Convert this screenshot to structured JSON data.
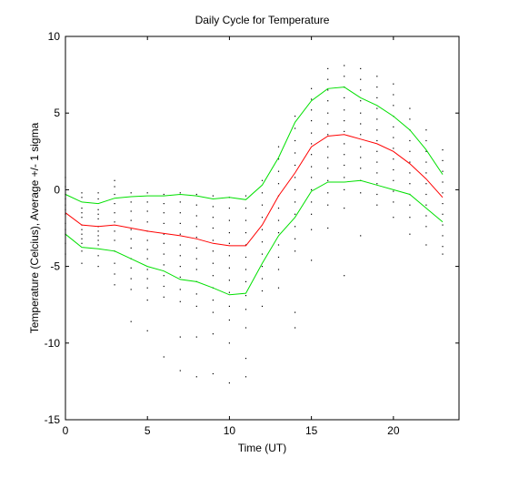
{
  "chart_data": {
    "type": "line",
    "title": "Daily Cycle for Temperature",
    "xlabel": "Time (UT)",
    "ylabel": "Temperature (Celcius), Average +/- 1 sigma",
    "xlim": [
      0,
      24
    ],
    "ylim": [
      -15,
      10
    ],
    "xticks": [
      0,
      5,
      10,
      15,
      20
    ],
    "yticks": [
      -15,
      -10,
      -5,
      0,
      5,
      10
    ],
    "grid": false,
    "x": [
      0,
      1,
      2,
      3,
      4,
      5,
      6,
      7,
      8,
      9,
      10,
      11,
      12,
      13,
      14,
      15,
      16,
      17,
      18,
      19,
      20,
      21,
      22,
      23
    ],
    "series": [
      {
        "role": "mean",
        "color": "#ff0000",
        "values": [
          -1.5,
          -2.3,
          -2.4,
          -2.3,
          -2.5,
          -2.7,
          -2.85,
          -3.0,
          -3.2,
          -3.5,
          -3.65,
          -3.65,
          -2.3,
          -0.4,
          1.1,
          2.8,
          3.5,
          3.6,
          3.3,
          3.0,
          2.5,
          1.7,
          0.7,
          -0.5
        ]
      },
      {
        "role": "mean+1sigma",
        "color": "#00e000",
        "values": [
          -0.3,
          -0.8,
          -0.9,
          -0.55,
          -0.45,
          -0.4,
          -0.4,
          -0.3,
          -0.4,
          -0.6,
          -0.5,
          -0.65,
          0.3,
          2.1,
          4.4,
          5.8,
          6.6,
          6.7,
          6.0,
          5.5,
          4.8,
          3.9,
          2.6,
          1.0
        ]
      },
      {
        "role": "mean-1sigma",
        "color": "#00e000",
        "values": [
          -2.9,
          -3.75,
          -3.85,
          -4.0,
          -4.5,
          -5.0,
          -5.3,
          -5.85,
          -6.0,
          -6.4,
          -6.85,
          -6.75,
          -4.8,
          -3.0,
          -1.8,
          -0.1,
          0.5,
          0.5,
          0.6,
          0.3,
          0.0,
          -0.3,
          -1.2,
          -2.1
        ]
      }
    ],
    "scatter": {
      "color": "#000000",
      "points": [
        [
          0,
          -0.3
        ],
        [
          0,
          -1.0
        ],
        [
          0,
          -1.6
        ],
        [
          0,
          -2.2
        ],
        [
          0,
          -2.9
        ],
        [
          0,
          -3.5
        ],
        [
          0,
          -4.2
        ],
        [
          0,
          0.2
        ],
        [
          0,
          0.8
        ],
        [
          0,
          -0.6
        ],
        [
          0,
          -1.3
        ],
        [
          0,
          -2.6
        ],
        [
          1,
          -0.5
        ],
        [
          1,
          -1.2
        ],
        [
          1,
          -1.8
        ],
        [
          1,
          -2.3
        ],
        [
          1,
          -2.9
        ],
        [
          1,
          -3.5
        ],
        [
          1,
          -4.0
        ],
        [
          1,
          -4.8
        ],
        [
          1,
          -0.2
        ],
        [
          1,
          -3.2
        ],
        [
          1,
          -2.6
        ],
        [
          1,
          -1.5
        ],
        [
          2,
          -0.6
        ],
        [
          2,
          -1.3
        ],
        [
          2,
          -1.9
        ],
        [
          2,
          -2.4
        ],
        [
          2,
          -3.0
        ],
        [
          2,
          -3.6
        ],
        [
          2,
          -4.3
        ],
        [
          2,
          -5.0
        ],
        [
          2,
          -0.2
        ],
        [
          2,
          -2.7
        ],
        [
          2,
          -1.6
        ],
        [
          2,
          -3.3
        ],
        [
          3,
          -0.3
        ],
        [
          3,
          -0.9
        ],
        [
          3,
          -1.5
        ],
        [
          3,
          -2.1
        ],
        [
          3,
          -2.7
        ],
        [
          3,
          -3.3
        ],
        [
          3,
          -4.0
        ],
        [
          3,
          -4.8
        ],
        [
          3,
          -5.5
        ],
        [
          3,
          -6.2
        ],
        [
          3,
          0.2
        ],
        [
          3,
          0.6
        ],
        [
          4,
          -0.2
        ],
        [
          4,
          -0.8
        ],
        [
          4,
          -1.4
        ],
        [
          4,
          -2.0
        ],
        [
          4,
          -2.6
        ],
        [
          4,
          -3.2
        ],
        [
          4,
          -3.8
        ],
        [
          4,
          -4.5
        ],
        [
          4,
          -5.1
        ],
        [
          4,
          -5.8
        ],
        [
          4,
          -6.5
        ],
        [
          4,
          -8.6
        ],
        [
          5,
          -0.2
        ],
        [
          5,
          -0.8
        ],
        [
          5,
          -1.4
        ],
        [
          5,
          -2.1
        ],
        [
          5,
          -2.7
        ],
        [
          5,
          -3.3
        ],
        [
          5,
          -3.9
        ],
        [
          5,
          -4.5
        ],
        [
          5,
          -5.2
        ],
        [
          5,
          -5.8
        ],
        [
          5,
          -6.4
        ],
        [
          5,
          -7.2
        ],
        [
          5,
          -9.2
        ],
        [
          6,
          -0.3
        ],
        [
          6,
          -0.9
        ],
        [
          6,
          -1.5
        ],
        [
          6,
          -2.2
        ],
        [
          6,
          -2.9
        ],
        [
          6,
          -3.5
        ],
        [
          6,
          -4.2
        ],
        [
          6,
          -4.9
        ],
        [
          6,
          -5.6
        ],
        [
          6,
          -6.3
        ],
        [
          6,
          -7.0
        ],
        [
          6,
          -10.9
        ],
        [
          7,
          -0.2
        ],
        [
          7,
          -0.8
        ],
        [
          7,
          -1.5
        ],
        [
          7,
          -2.2
        ],
        [
          7,
          -2.9
        ],
        [
          7,
          -3.6
        ],
        [
          7,
          -4.3
        ],
        [
          7,
          -5.0
        ],
        [
          7,
          -5.7
        ],
        [
          7,
          -6.5
        ],
        [
          7,
          -7.3
        ],
        [
          7,
          -9.6
        ],
        [
          7,
          -11.8
        ],
        [
          8,
          -0.3
        ],
        [
          8,
          -1.0
        ],
        [
          8,
          -1.7
        ],
        [
          8,
          -2.4
        ],
        [
          8,
          -3.1
        ],
        [
          8,
          -3.8
        ],
        [
          8,
          -4.5
        ],
        [
          8,
          -5.2
        ],
        [
          8,
          -6.0
        ],
        [
          8,
          -6.8
        ],
        [
          8,
          -7.6
        ],
        [
          8,
          -9.6
        ],
        [
          8,
          -12.2
        ],
        [
          9,
          -0.4
        ],
        [
          9,
          -1.1
        ],
        [
          9,
          -1.8
        ],
        [
          9,
          -2.5
        ],
        [
          9,
          -3.3
        ],
        [
          9,
          -4.0
        ],
        [
          9,
          -4.8
        ],
        [
          9,
          -5.6
        ],
        [
          9,
          -6.4
        ],
        [
          9,
          -7.2
        ],
        [
          9,
          -8.0
        ],
        [
          9,
          -9.4
        ],
        [
          9,
          -12.0
        ],
        [
          10,
          -0.5
        ],
        [
          10,
          -1.2
        ],
        [
          10,
          -2.0
        ],
        [
          10,
          -2.8
        ],
        [
          10,
          -3.5
        ],
        [
          10,
          -4.3
        ],
        [
          10,
          -5.1
        ],
        [
          10,
          -5.9
        ],
        [
          10,
          -6.7
        ],
        [
          10,
          -7.6
        ],
        [
          10,
          -8.5
        ],
        [
          10,
          -10.0
        ],
        [
          10,
          -12.6
        ],
        [
          11,
          -0.4
        ],
        [
          11,
          -1.2
        ],
        [
          11,
          -2.0
        ],
        [
          11,
          -2.8
        ],
        [
          11,
          -3.6
        ],
        [
          11,
          -4.4
        ],
        [
          11,
          -5.2
        ],
        [
          11,
          -6.0
        ],
        [
          11,
          -6.9
        ],
        [
          11,
          -7.8
        ],
        [
          11,
          -9.0
        ],
        [
          11,
          -11.0
        ],
        [
          11,
          -12.2
        ],
        [
          12,
          0.6
        ],
        [
          12,
          -0.2
        ],
        [
          12,
          -1.0
        ],
        [
          12,
          -1.8
        ],
        [
          12,
          -2.6
        ],
        [
          12,
          -3.4
        ],
        [
          12,
          -4.2
        ],
        [
          12,
          -5.0
        ],
        [
          12,
          -5.8
        ],
        [
          12,
          -6.6
        ],
        [
          12,
          -7.6
        ],
        [
          13,
          2.8
        ],
        [
          13,
          2.0
        ],
        [
          13,
          1.2
        ],
        [
          13,
          0.4
        ],
        [
          13,
          -0.4
        ],
        [
          13,
          -1.2
        ],
        [
          13,
          -2.0
        ],
        [
          13,
          -2.8
        ],
        [
          13,
          -3.6
        ],
        [
          13,
          -4.4
        ],
        [
          13,
          -5.2
        ],
        [
          13,
          -6.4
        ],
        [
          14,
          4.8
        ],
        [
          14,
          4.0
        ],
        [
          14,
          3.2
        ],
        [
          14,
          2.4
        ],
        [
          14,
          1.6
        ],
        [
          14,
          0.8
        ],
        [
          14,
          0.0
        ],
        [
          14,
          -0.8
        ],
        [
          14,
          -1.6
        ],
        [
          14,
          -2.4
        ],
        [
          14,
          -3.2
        ],
        [
          14,
          -4.0
        ],
        [
          14,
          -8.0
        ],
        [
          14,
          -9.0
        ],
        [
          15,
          6.6
        ],
        [
          15,
          5.9
        ],
        [
          15,
          5.2
        ],
        [
          15,
          4.5
        ],
        [
          15,
          3.7
        ],
        [
          15,
          3.0
        ],
        [
          15,
          2.3
        ],
        [
          15,
          1.5
        ],
        [
          15,
          0.8
        ],
        [
          15,
          0.0
        ],
        [
          15,
          -0.8
        ],
        [
          15,
          -1.6
        ],
        [
          15,
          -2.6
        ],
        [
          15,
          -4.6
        ],
        [
          16,
          7.9
        ],
        [
          16,
          7.2
        ],
        [
          16,
          6.5
        ],
        [
          16,
          5.8
        ],
        [
          16,
          5.0
        ],
        [
          16,
          4.3
        ],
        [
          16,
          3.6
        ],
        [
          16,
          2.8
        ],
        [
          16,
          2.1
        ],
        [
          16,
          1.4
        ],
        [
          16,
          0.6
        ],
        [
          16,
          -0.2
        ],
        [
          16,
          -1.0
        ],
        [
          16,
          -2.5
        ],
        [
          17,
          8.1
        ],
        [
          17,
          7.4
        ],
        [
          17,
          6.7
        ],
        [
          17,
          6.0
        ],
        [
          17,
          5.2
        ],
        [
          17,
          4.5
        ],
        [
          17,
          3.8
        ],
        [
          17,
          3.0
        ],
        [
          17,
          2.3
        ],
        [
          17,
          1.6
        ],
        [
          17,
          0.8
        ],
        [
          17,
          0.0
        ],
        [
          17,
          -1.2
        ],
        [
          17,
          -5.6
        ],
        [
          18,
          7.9
        ],
        [
          18,
          7.2
        ],
        [
          18,
          6.5
        ],
        [
          18,
          5.8
        ],
        [
          18,
          5.0
        ],
        [
          18,
          4.3
        ],
        [
          18,
          3.6
        ],
        [
          18,
          2.8
        ],
        [
          18,
          2.1
        ],
        [
          18,
          1.4
        ],
        [
          18,
          0.6
        ],
        [
          18,
          -0.2
        ],
        [
          18,
          -3.0
        ],
        [
          19,
          7.4
        ],
        [
          19,
          6.7
        ],
        [
          19,
          6.0
        ],
        [
          19,
          5.3
        ],
        [
          19,
          4.6
        ],
        [
          19,
          3.9
        ],
        [
          19,
          3.2
        ],
        [
          19,
          2.5
        ],
        [
          19,
          1.8
        ],
        [
          19,
          1.1
        ],
        [
          19,
          0.4
        ],
        [
          19,
          -0.3
        ],
        [
          19,
          -1.0
        ],
        [
          20,
          6.9
        ],
        [
          20,
          6.2
        ],
        [
          20,
          5.5
        ],
        [
          20,
          4.8
        ],
        [
          20,
          4.1
        ],
        [
          20,
          3.4
        ],
        [
          20,
          2.7
        ],
        [
          20,
          2.0
        ],
        [
          20,
          1.3
        ],
        [
          20,
          0.6
        ],
        [
          20,
          -0.1
        ],
        [
          20,
          -0.8
        ],
        [
          20,
          -1.8
        ],
        [
          21,
          5.3
        ],
        [
          21,
          4.6
        ],
        [
          21,
          3.9
        ],
        [
          21,
          3.2
        ],
        [
          21,
          2.5
        ],
        [
          21,
          1.8
        ],
        [
          21,
          1.1
        ],
        [
          21,
          0.4
        ],
        [
          21,
          -0.3
        ],
        [
          21,
          -1.0
        ],
        [
          21,
          -1.8
        ],
        [
          21,
          -2.9
        ],
        [
          22,
          3.9
        ],
        [
          22,
          3.2
        ],
        [
          22,
          2.5
        ],
        [
          22,
          1.8
        ],
        [
          22,
          1.1
        ],
        [
          22,
          0.4
        ],
        [
          22,
          -0.3
        ],
        [
          22,
          -1.0
        ],
        [
          22,
          -1.7
        ],
        [
          22,
          -2.4
        ],
        [
          22,
          -3.6
        ],
        [
          23,
          2.6
        ],
        [
          23,
          1.9
        ],
        [
          23,
          1.2
        ],
        [
          23,
          0.5
        ],
        [
          23,
          -0.2
        ],
        [
          23,
          -0.9
        ],
        [
          23,
          -1.6
        ],
        [
          23,
          -2.3
        ],
        [
          23,
          -3.0
        ],
        [
          23,
          -3.7
        ],
        [
          23,
          -4.2
        ]
      ]
    }
  }
}
